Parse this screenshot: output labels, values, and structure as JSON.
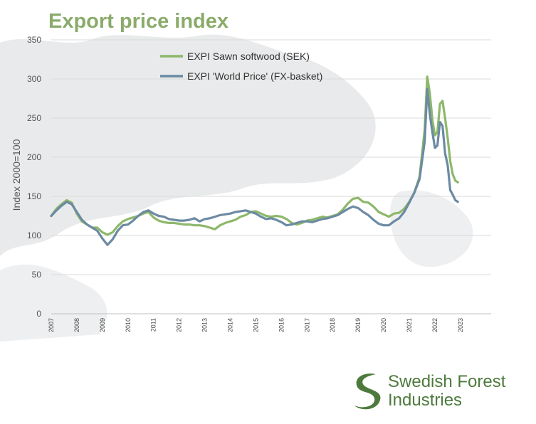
{
  "title": "Export price index",
  "colors": {
    "title": "#8aab6a",
    "sawn": "#8db86a",
    "world": "#6c8aa3",
    "logo": "#4d7a3c"
  },
  "logo": {
    "line1": "Swedish Forest",
    "line2": "Industries",
    "icon": "s-leaf-logo"
  },
  "chart_data": {
    "type": "line",
    "title": "Export price index",
    "ylabel": "Index 2000=100",
    "xlabel": "",
    "ylim": [
      0,
      350
    ],
    "yticks": [
      0,
      50,
      100,
      150,
      200,
      250,
      300,
      350
    ],
    "xlim": [
      2007,
      2024.2
    ],
    "xticks": [
      "2007",
      "2008",
      "2009",
      "2010",
      "2011",
      "2012",
      "2013",
      "2014",
      "2015",
      "2016",
      "2017",
      "2018",
      "2019",
      "2020",
      "2021",
      "2022",
      "2023"
    ],
    "grid": true,
    "legend_position": "top-center",
    "series": [
      {
        "name": "EXPI Sawn softwood (SEK)",
        "color": "#8db86a",
        "x": [
          2007.0,
          2007.2,
          2007.4,
          2007.6,
          2007.8,
          2008.0,
          2008.2,
          2008.4,
          2008.6,
          2008.8,
          2009.0,
          2009.2,
          2009.4,
          2009.6,
          2009.8,
          2010.0,
          2010.2,
          2010.4,
          2010.6,
          2010.8,
          2011.0,
          2011.2,
          2011.4,
          2011.6,
          2011.8,
          2012.0,
          2012.2,
          2012.4,
          2012.6,
          2012.8,
          2013.0,
          2013.2,
          2013.4,
          2013.6,
          2013.8,
          2014.0,
          2014.2,
          2014.4,
          2014.6,
          2014.8,
          2015.0,
          2015.2,
          2015.4,
          2015.6,
          2015.8,
          2016.0,
          2016.2,
          2016.4,
          2016.6,
          2016.8,
          2017.0,
          2017.2,
          2017.4,
          2017.6,
          2017.8,
          2018.0,
          2018.2,
          2018.4,
          2018.6,
          2018.8,
          2019.0,
          2019.2,
          2019.4,
          2019.6,
          2019.8,
          2020.0,
          2020.2,
          2020.4,
          2020.6,
          2020.8,
          2021.0,
          2021.2,
          2021.4,
          2021.6,
          2021.7,
          2021.8,
          2021.9,
          2022.0,
          2022.1,
          2022.2,
          2022.3,
          2022.4,
          2022.5,
          2022.6,
          2022.7,
          2022.8,
          2022.9
        ],
        "y": [
          125,
          134,
          140,
          145,
          142,
          128,
          118,
          114,
          110,
          110,
          104,
          101,
          104,
          112,
          118,
          121,
          123,
          125,
          128,
          130,
          123,
          119,
          117,
          116,
          116,
          115,
          114,
          114,
          113,
          113,
          112,
          110,
          108,
          113,
          116,
          118,
          120,
          124,
          126,
          130,
          131,
          128,
          125,
          124,
          125,
          124,
          121,
          116,
          114,
          116,
          119,
          120,
          122,
          124,
          123,
          125,
          127,
          133,
          141,
          147,
          148,
          143,
          142,
          137,
          130,
          127,
          124,
          128,
          129,
          134,
          143,
          155,
          175,
          235,
          303,
          282,
          248,
          228,
          232,
          268,
          272,
          250,
          225,
          195,
          178,
          170,
          168
        ]
      },
      {
        "name": "EXPI 'World Price' (FX-basket)",
        "color": "#6c8aa3",
        "x": [
          2007.0,
          2007.2,
          2007.4,
          2007.6,
          2007.8,
          2008.0,
          2008.2,
          2008.4,
          2008.6,
          2008.8,
          2009.0,
          2009.2,
          2009.4,
          2009.6,
          2009.8,
          2010.0,
          2010.2,
          2010.4,
          2010.6,
          2010.8,
          2011.0,
          2011.2,
          2011.4,
          2011.6,
          2011.8,
          2012.0,
          2012.2,
          2012.4,
          2012.6,
          2012.8,
          2013.0,
          2013.2,
          2013.4,
          2013.6,
          2013.8,
          2014.0,
          2014.2,
          2014.4,
          2014.6,
          2014.8,
          2015.0,
          2015.2,
          2015.4,
          2015.6,
          2015.8,
          2016.0,
          2016.2,
          2016.4,
          2016.6,
          2016.8,
          2017.0,
          2017.2,
          2017.4,
          2017.6,
          2017.8,
          2018.0,
          2018.2,
          2018.4,
          2018.6,
          2018.8,
          2019.0,
          2019.2,
          2019.4,
          2019.6,
          2019.8,
          2020.0,
          2020.2,
          2020.4,
          2020.6,
          2020.8,
          2021.0,
          2021.2,
          2021.4,
          2021.6,
          2021.7,
          2021.8,
          2021.9,
          2022.0,
          2022.1,
          2022.2,
          2022.3,
          2022.4,
          2022.5,
          2022.6,
          2022.7,
          2022.8,
          2022.9
        ],
        "y": [
          125,
          132,
          138,
          143,
          140,
          130,
          120,
          114,
          110,
          106,
          96,
          88,
          95,
          106,
          113,
          114,
          119,
          125,
          130,
          132,
          128,
          125,
          124,
          121,
          120,
          119,
          119,
          120,
          122,
          118,
          121,
          122,
          124,
          126,
          127,
          128,
          130,
          131,
          132,
          130,
          128,
          124,
          121,
          122,
          120,
          117,
          113,
          114,
          116,
          118,
          118,
          117,
          119,
          121,
          122,
          124,
          126,
          130,
          134,
          137,
          135,
          130,
          126,
          120,
          115,
          113,
          113,
          118,
          122,
          130,
          142,
          155,
          172,
          220,
          287,
          255,
          232,
          212,
          215,
          245,
          240,
          205,
          190,
          158,
          152,
          145,
          143
        ]
      }
    ]
  }
}
